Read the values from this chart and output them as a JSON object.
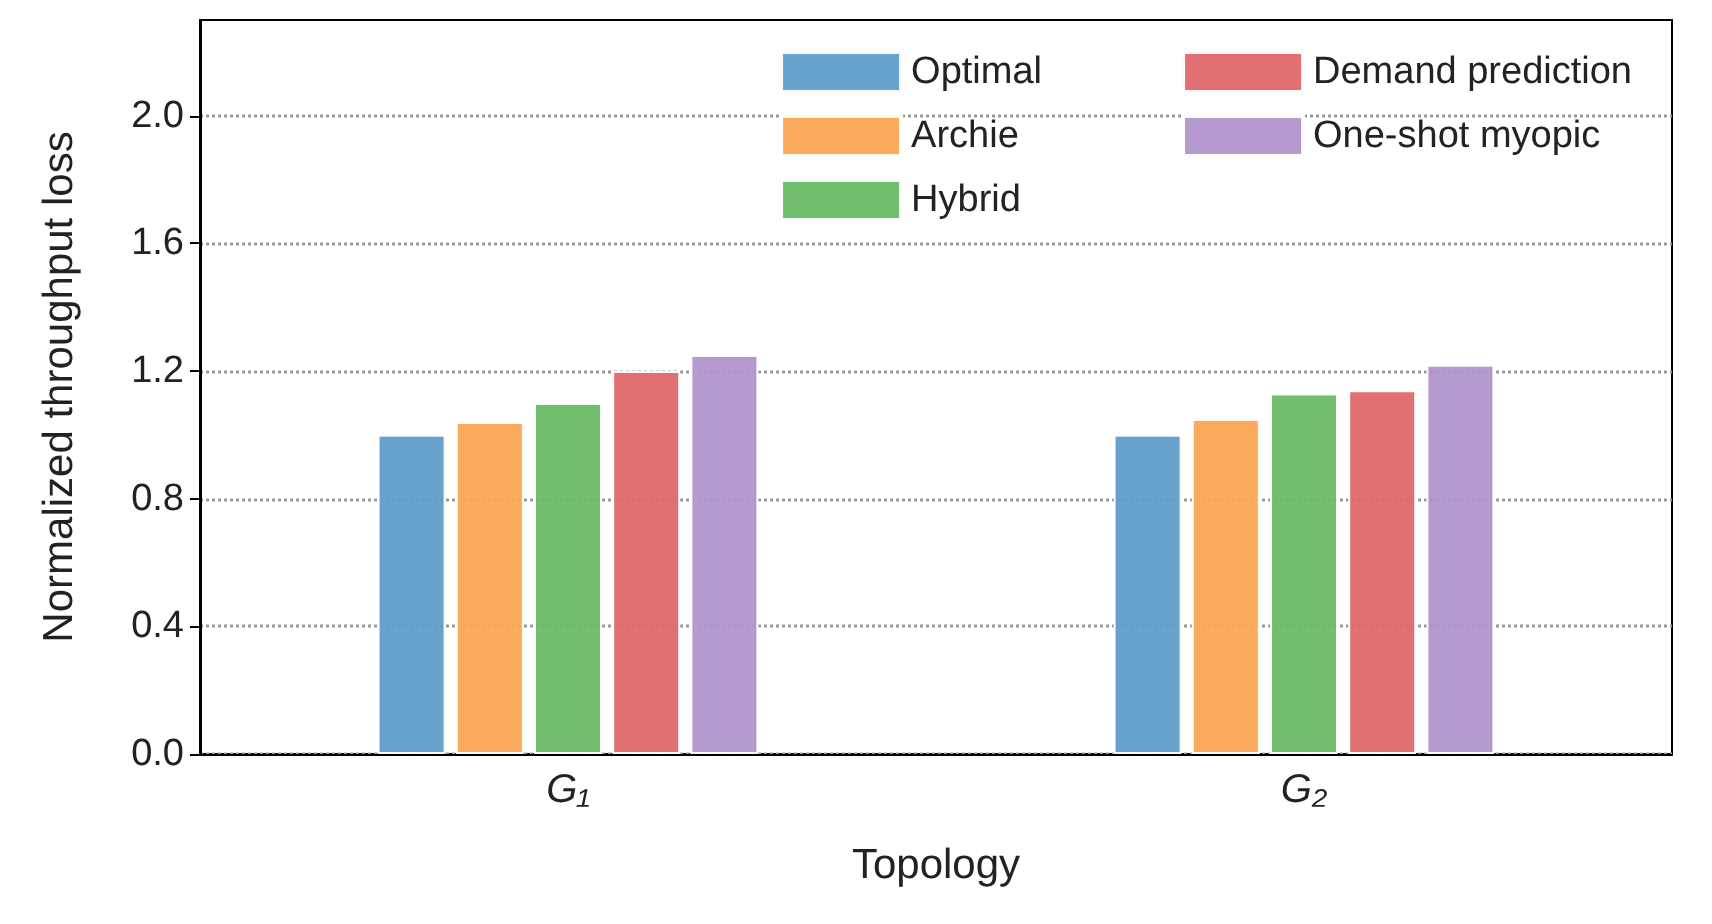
{
  "chart_data": {
    "type": "bar",
    "xlabel": "Topology",
    "ylabel": "Normalized throughput loss",
    "categories": [
      "G₁",
      "G₂"
    ],
    "series": [
      {
        "name": "Optimal",
        "color": "#5f9ec9",
        "values": [
          1.0,
          1.0
        ]
      },
      {
        "name": "Archie",
        "color": "#fea555",
        "values": [
          1.04,
          1.05
        ]
      },
      {
        "name": "Hybrid",
        "color": "#69bb67",
        "values": [
          1.1,
          1.13
        ]
      },
      {
        "name": "Demand prediction",
        "color": "#e0686a",
        "values": [
          1.2,
          1.14
        ]
      },
      {
        "name": "One-shot myopic",
        "color": "#b195cd",
        "values": [
          1.25,
          1.22
        ]
      }
    ],
    "ylim": [
      0,
      2.3
    ],
    "yticks": [
      {
        "value": 0,
        "label": "0.0"
      },
      0.4,
      0.8,
      1.2,
      1.6,
      {
        "value": 2,
        "label": "2.0"
      }
    ],
    "grid": "y",
    "legend": "top right"
  }
}
